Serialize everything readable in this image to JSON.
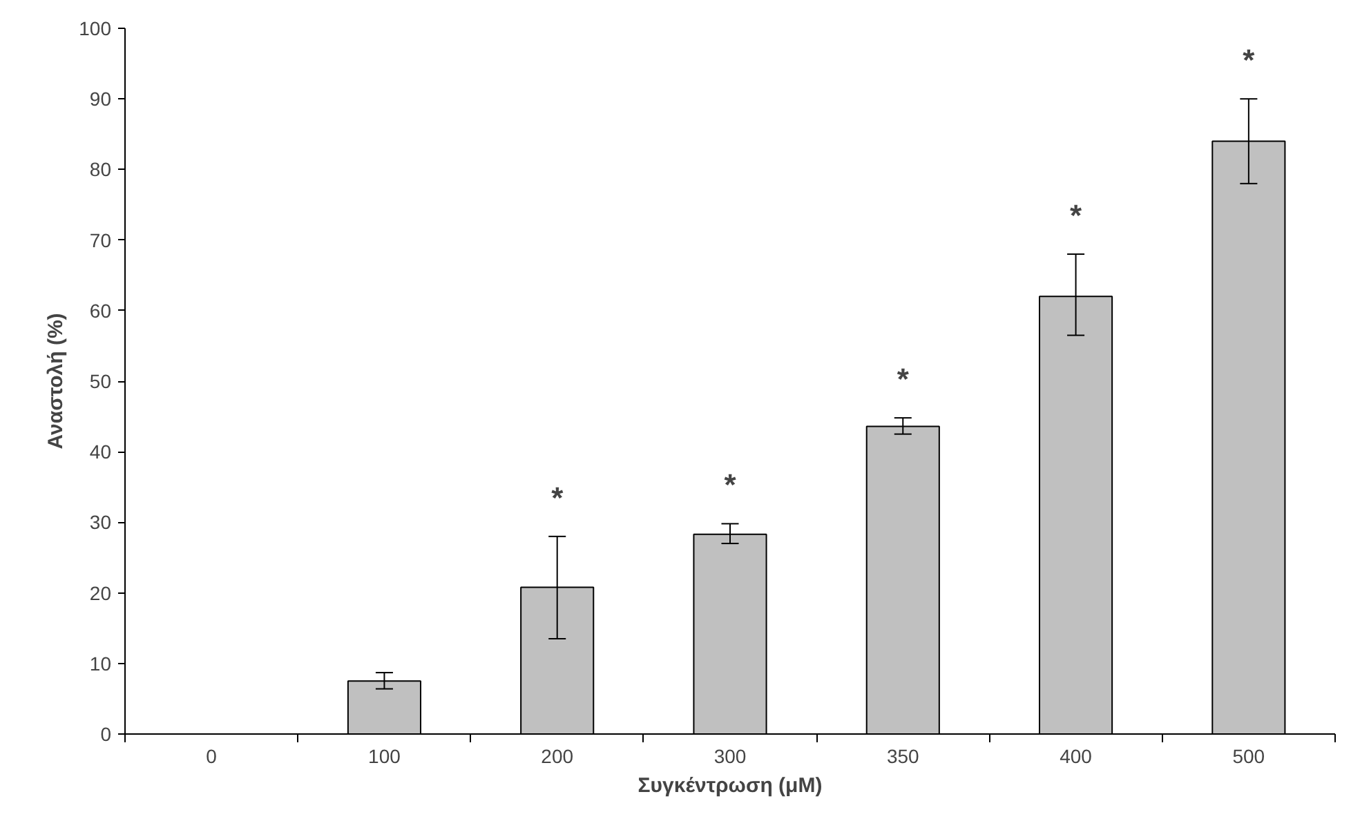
{
  "chart_data": {
    "type": "bar",
    "xlabel": "Συγκέντρωση (μM)",
    "ylabel": "Αναστολή (%)",
    "categories": [
      "0",
      "100",
      "200",
      "300",
      "350",
      "400",
      "500"
    ],
    "values": [
      0,
      7.5,
      20.8,
      28.3,
      43.6,
      62,
      84
    ],
    "errors": [
      null,
      [
        6.4,
        8.7
      ],
      [
        13.5,
        28
      ],
      [
        27,
        29.8
      ],
      [
        42.5,
        44.8
      ],
      [
        56.5,
        68
      ],
      [
        78,
        90
      ]
    ],
    "color": "#c0c0c0",
    "ylim": [
      0,
      100
    ],
    "yticks": [
      0,
      10,
      20,
      30,
      40,
      50,
      60,
      70,
      80,
      90,
      100
    ],
    "grid": false,
    "annotations": [
      "*",
      "*",
      "*",
      "*",
      "*"
    ]
  }
}
